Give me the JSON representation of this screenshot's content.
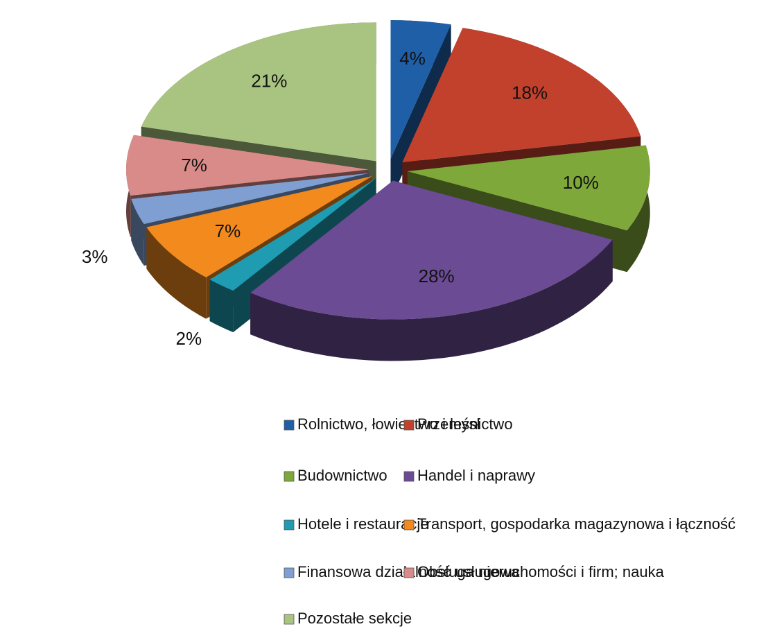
{
  "chart_data": {
    "type": "pie",
    "categories": [
      "Rolnictwo, łowiectwo i leśnictwo",
      "Przemysł",
      "Budownictwo",
      "Handel i naprawy",
      "Hotele i restauracje",
      "Transport, gospodarka magazynowa i łączność",
      "Finansowa działalność usługowa",
      "Obsługa nieruchomości i firm; nauka",
      "Pozostałe sekcje"
    ],
    "values": [
      4,
      18,
      10,
      28,
      2,
      7,
      3,
      7,
      21
    ],
    "value_labels": [
      "4%",
      "18%",
      "10%",
      "28%",
      "2%",
      "7%",
      "3%",
      "7%",
      "21%"
    ],
    "colors": [
      "#1f5fa8",
      "#c2412c",
      "#7fa83a",
      "#6b4b94",
      "#1f9cb2",
      "#f28a1d",
      "#7f9fd2",
      "#d98b89",
      "#a9c480"
    ],
    "legend": "bottom"
  }
}
